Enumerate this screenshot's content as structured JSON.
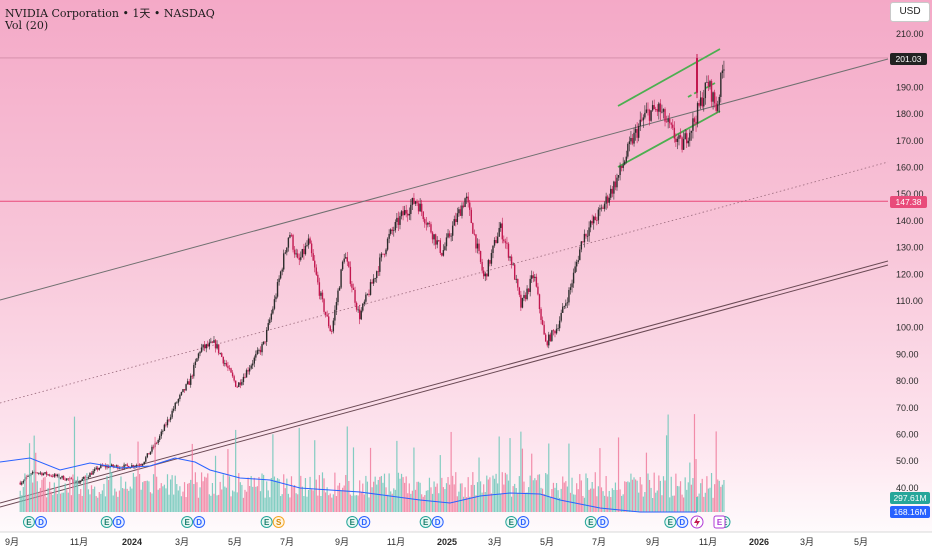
{
  "header": {
    "title": "NVIDIA Corporation • 1天 • NASDAQ",
    "indicator": "Vol (20)"
  },
  "currency_button": "USD",
  "price_labels": {
    "last": "201.03",
    "marked": "147.38",
    "vol_current": "297.61M",
    "vol_ma": "168.16M"
  },
  "colors": {
    "up": "#1b998b",
    "down": "#e0446e",
    "candle_up": "#2b2b2b",
    "candle_down": "#c2184f",
    "channel_green": "#4caf50",
    "trend_gray": "#666666",
    "ma_line": "#2962ff",
    "price_line_red": "#e94b7a",
    "last_label_bg": "#222222",
    "marked_label_bg": "#e94b7a",
    "vol_label_bg": "#26a69a",
    "vol_ma_label_bg": "#2962ff"
  },
  "chart_data": {
    "type": "candlestick",
    "title": "NVIDIA Corporation • 1天 • NASDAQ",
    "ylim": [
      35,
      215
    ],
    "y_ticks": [
      "210.00",
      "200.00",
      "190.00",
      "180.00",
      "170.00",
      "160.00",
      "150.00",
      "140.00",
      "130.00",
      "120.00",
      "110.00",
      "100.00",
      "90.00",
      "80.00",
      "70.00",
      "60.00",
      "50.00",
      "40.00"
    ],
    "x_ticks": [
      "9月",
      "11月",
      "2024",
      "3月",
      "5月",
      "7月",
      "9月",
      "11月",
      "2025",
      "3月",
      "5月",
      "7月",
      "9月",
      "11月",
      "2026",
      "3月",
      "5月"
    ],
    "x_ticks_bold": [
      "2024",
      "2025",
      "2026"
    ],
    "x_range": [
      "2023-08",
      "2026-06"
    ],
    "price_path": [
      [
        "2023-08-15",
        42
      ],
      [
        "2023-09-01",
        46
      ],
      [
        "2023-10-01",
        44
      ],
      [
        "2023-10-20",
        42
      ],
      [
        "2023-11-15",
        48
      ],
      [
        "2023-12-15",
        48
      ],
      [
        "2024-01-01",
        49
      ],
      [
        "2024-01-20",
        58
      ],
      [
        "2024-02-10",
        72
      ],
      [
        "2024-02-25",
        80
      ],
      [
        "2024-03-08",
        92
      ],
      [
        "2024-03-25",
        94
      ],
      [
        "2024-04-19",
        78
      ],
      [
        "2024-05-20",
        94
      ],
      [
        "2024-06-01",
        110
      ],
      [
        "2024-06-18",
        136
      ],
      [
        "2024-06-28",
        124
      ],
      [
        "2024-07-10",
        132
      ],
      [
        "2024-07-25",
        110
      ],
      [
        "2024-08-05",
        98
      ],
      [
        "2024-08-20",
        128
      ],
      [
        "2024-09-06",
        104
      ],
      [
        "2024-09-20",
        116
      ],
      [
        "2024-10-10",
        134
      ],
      [
        "2024-10-25",
        142
      ],
      [
        "2024-11-10",
        148
      ],
      [
        "2024-11-25",
        138
      ],
      [
        "2024-12-10",
        128
      ],
      [
        "2024-12-25",
        140
      ],
      [
        "2025-01-06",
        149
      ],
      [
        "2025-01-27",
        118
      ],
      [
        "2025-02-14",
        138
      ],
      [
        "2025-02-28",
        124
      ],
      [
        "2025-03-10",
        108
      ],
      [
        "2025-03-25",
        120
      ],
      [
        "2025-04-07",
        94
      ],
      [
        "2025-04-20",
        100
      ],
      [
        "2025-05-05",
        114
      ],
      [
        "2025-05-20",
        134
      ],
      [
        "2025-06-10",
        144
      ],
      [
        "2025-06-30",
        157
      ],
      [
        "2025-07-15",
        170
      ],
      [
        "2025-07-31",
        180
      ],
      [
        "2025-08-15",
        182
      ],
      [
        "2025-09-01",
        172
      ],
      [
        "2025-09-10",
        168
      ],
      [
        "2025-09-25",
        178
      ],
      [
        "2025-10-10",
        192
      ],
      [
        "2025-10-20",
        182
      ],
      [
        "2025-10-29",
        201
      ]
    ],
    "series": [
      {
        "name": "Vol (20)",
        "type": "histogram"
      },
      {
        "type": "line",
        "note": "volume moving average"
      }
    ],
    "last_price": 201.03,
    "marked_price": 147.38,
    "volume_current": "297.61M",
    "volume_ma": "168.16M",
    "events": [
      {
        "date": "2023-08-25",
        "labels": [
          "E",
          "D"
        ]
      },
      {
        "date": "2023-11-22",
        "labels": [
          "E",
          "D"
        ]
      },
      {
        "date": "2024-02-22",
        "labels": [
          "E",
          "D"
        ]
      },
      {
        "date": "2024-05-23",
        "labels": [
          "E",
          "S"
        ]
      },
      {
        "date": "2024-08-29",
        "labels": [
          "E",
          "D"
        ]
      },
      {
        "date": "2024-11-21",
        "labels": [
          "E",
          "D"
        ]
      },
      {
        "date": "2025-02-27",
        "labels": [
          "E",
          "D"
        ]
      },
      {
        "date": "2025-05-29",
        "labels": [
          "E",
          "D"
        ]
      },
      {
        "date": "2025-08-28",
        "labels": [
          "E",
          "D"
        ]
      },
      {
        "date": "2025-10-29",
        "labels": [
          "E"
        ]
      }
    ]
  }
}
